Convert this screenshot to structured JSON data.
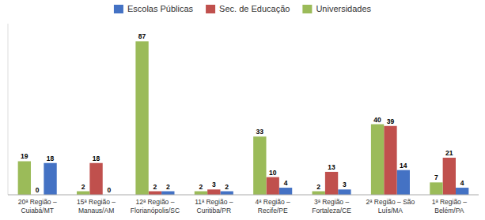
{
  "chart_data": {
    "type": "bar",
    "categories": [
      "20ª Região –\nCuiabá/MT",
      "15ª Região –\nManaus/AM",
      "12ª Região –\nFlorianópolis/SC",
      "11ª Região –\nCuritiba/PR",
      "4ª Região –\nRecife/PE",
      "3ª Região –\nFortaleza/CE",
      "2ª Região – São\nLuís/MA",
      "1ª Região –\nBelém/PA"
    ],
    "series": [
      {
        "name": "Escolas Públicas",
        "color": "#4472C4",
        "values": [
          18,
          0,
          2,
          2,
          4,
          3,
          14,
          4
        ]
      },
      {
        "name": "Sec. de Educação",
        "color": "#C0504D",
        "values": [
          0,
          18,
          2,
          3,
          10,
          13,
          39,
          21
        ]
      },
      {
        "name": "Universidades",
        "color": "#9BBB59",
        "values": [
          19,
          2,
          87,
          2,
          33,
          2,
          40,
          7
        ]
      }
    ],
    "ylim": [
      0,
      97
    ],
    "grid": false,
    "legend": "top",
    "data_labels": true,
    "tick_labels": "x"
  }
}
